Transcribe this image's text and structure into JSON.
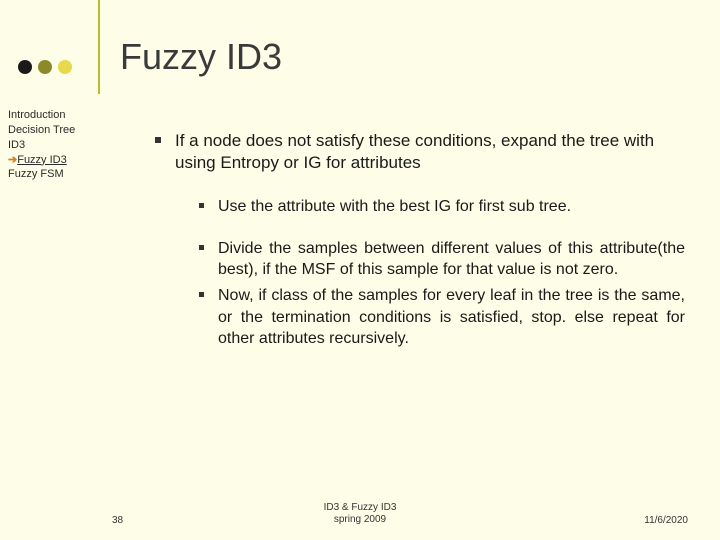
{
  "title": "Fuzzy ID3",
  "decor": {
    "dot_colors": [
      "#1a1a1a",
      "#8a8a2a",
      "#e8d84a"
    ],
    "vline_color": "#c0b830",
    "background": "#fdfde8"
  },
  "sidebar": {
    "items": [
      {
        "label": "Introduction",
        "active": false
      },
      {
        "label": "Decision Tree",
        "active": false
      },
      {
        "label": "ID3",
        "active": false
      },
      {
        "label": "Fuzzy ID3",
        "active": true,
        "arrow": "➔"
      },
      {
        "label": "Fuzzy FSM",
        "active": false
      }
    ]
  },
  "content": {
    "main_bullet": "If a node does not satisfy these conditions, expand the tree with using Entropy or IG for attributes",
    "sub_bullets": [
      "Use the attribute with the best IG for first sub tree.",
      "Divide the samples between different values of this attribute(the best), if the MSF of this sample for that value is not zero.",
      " Now, if class of the samples for every leaf in the tree is the same, or the termination conditions is satisfied, stop. else repeat for other attributes recursively."
    ]
  },
  "footer": {
    "page": "38",
    "center_line1": "ID3 & Fuzzy ID3",
    "center_line2": "spring 2009",
    "date": "11/6/2020"
  }
}
